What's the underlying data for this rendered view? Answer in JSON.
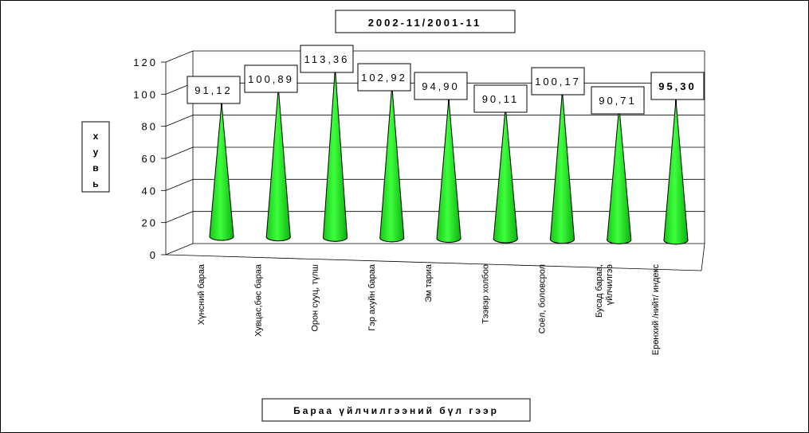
{
  "chart_data": {
    "type": "bar",
    "title": "2002-11/2001-11",
    "xlabel": "Бараа үйлчилгээний бүл гээр",
    "ylabel": "хувь",
    "ylim": [
      0,
      120
    ],
    "yticks": [
      0,
      20,
      40,
      60,
      80,
      100,
      120
    ],
    "grid": true,
    "shape": "cone",
    "color": "#22ee22",
    "categories": [
      [
        "Хүнсний бараа"
      ],
      [
        "Хувцас,бөс бараа"
      ],
      [
        "Орон сууц, түлш"
      ],
      [
        "Гэр ахуйн бараа"
      ],
      [
        "Эм тариа"
      ],
      [
        "Тээвэр холбоо"
      ],
      [
        "Соёл, боловсрол"
      ],
      [
        "Бусад бараа,",
        "үйлчилгээ"
      ],
      [
        "Ерөнхий /нийт/ индекс"
      ]
    ],
    "values": [
      91.12,
      100.89,
      113.36,
      102.92,
      94.9,
      90.11,
      100.17,
      90.71,
      95.3
    ],
    "data_labels": [
      "91,12",
      "100,89",
      "113,36",
      "102,92",
      "94,90",
      "90,11",
      "100,17",
      "90,71",
      "95,30"
    ],
    "ytick_labels": [
      "0",
      "20",
      "40",
      "60",
      "80",
      "100",
      "120"
    ]
  }
}
